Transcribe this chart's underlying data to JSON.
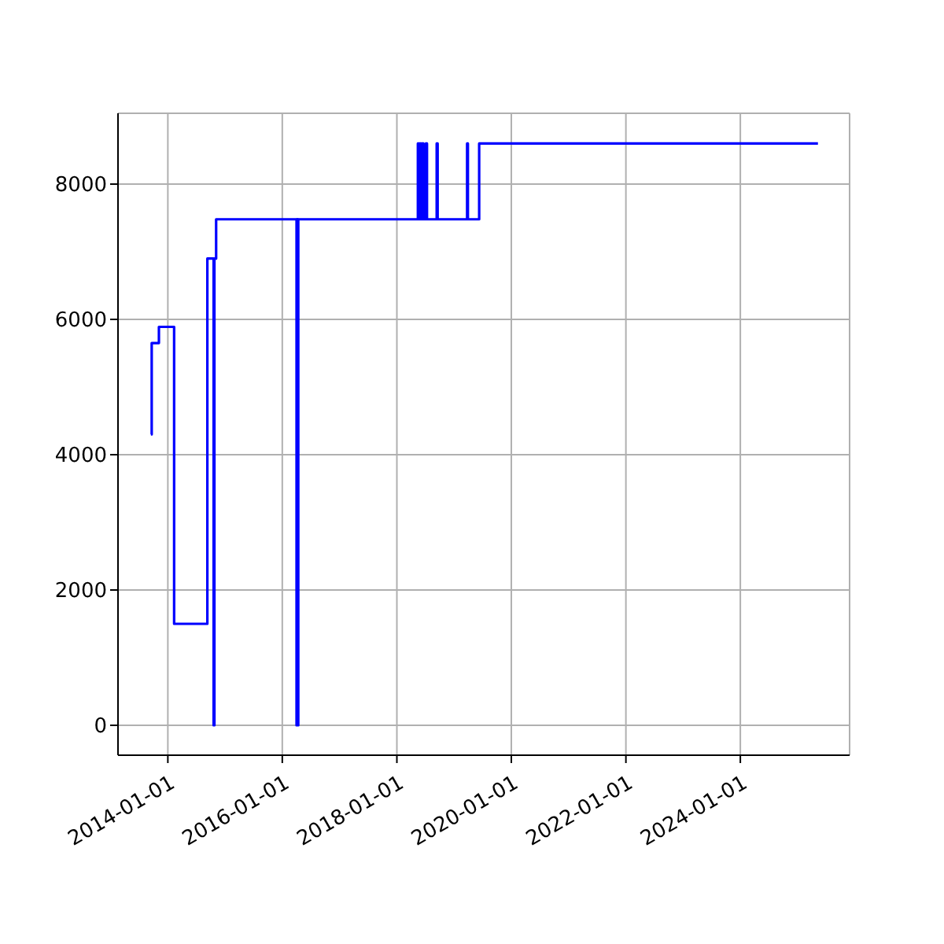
{
  "chart_data": {
    "type": "step",
    "x": [
      "2013-09-15",
      "2013-09-20",
      "2013-11-05",
      "2014-02-10",
      "2014-09-10",
      "2014-10-20",
      "2014-10-25",
      "2014-11-05",
      "2016-04-01",
      "2016-04-05",
      "2016-04-08",
      "2016-04-12",
      "2018-05-15",
      "2018-05-20",
      "2018-05-25",
      "2018-06-05",
      "2018-06-10",
      "2018-06-20",
      "2018-07-05",
      "2018-07-12",
      "2018-09-12",
      "2018-09-18",
      "2019-03-25",
      "2019-03-30",
      "2019-06-10",
      "2025-05-10"
    ],
    "series": [
      {
        "color": "#0000ff",
        "values": [
          4300,
          5650,
          5890,
          1500,
          6900,
          0,
          6900,
          7480,
          0,
          7480,
          0,
          7480,
          8600,
          7480,
          8600,
          7480,
          8600,
          7480,
          8600,
          7480,
          8600,
          7480,
          8600,
          7480,
          8600,
          8600
        ]
      }
    ],
    "xlim": [
      "2013-02-17",
      "2025-11-28"
    ],
    "xticks": [
      "2014-01-01",
      "2016-01-01",
      "2018-01-01",
      "2020-01-01",
      "2022-01-01",
      "2024-01-01"
    ],
    "ylim": [
      -442,
      9047
    ],
    "yticks": [
      0,
      2000,
      4000,
      6000,
      8000
    ],
    "grid": true
  }
}
